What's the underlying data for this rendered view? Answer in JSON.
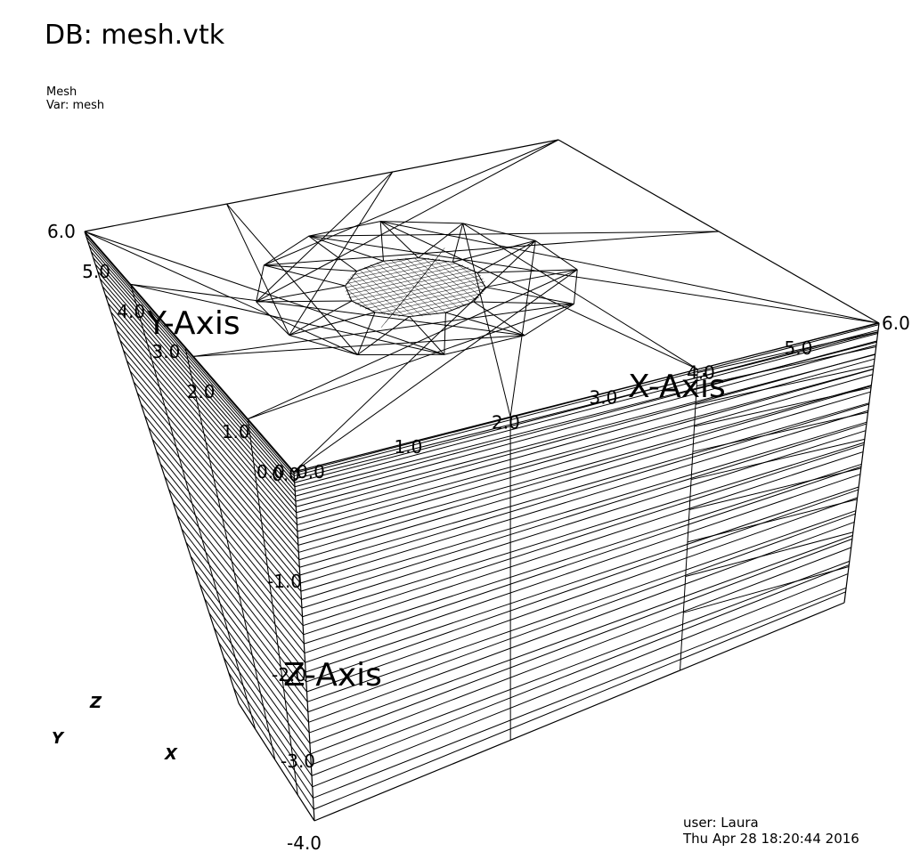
{
  "header": {
    "db_title": "DB: mesh.vtk",
    "plot_type": "Mesh",
    "plot_var": "Var: mesh"
  },
  "axes": {
    "x_title": "X-Axis",
    "y_title": "Y-Axis",
    "z_title": "Z-Axis",
    "x_ticks": [
      "0.0",
      "1.0",
      "2.0",
      "3.0",
      "4.0",
      "5.0",
      "6.0"
    ],
    "y_ticks": [
      "0.0",
      "1.0",
      "2.0",
      "3.0",
      "4.0",
      "5.0",
      "6.0"
    ],
    "z_ticks": [
      "0.0",
      "-1.0",
      "-2.0",
      "-3.0",
      "-4.0"
    ]
  },
  "triad": {
    "x": "X",
    "y": "Y",
    "z": "Z"
  },
  "footer": {
    "user": "user: Laura",
    "timestamp": "Thu Apr 28 18:20:44 2016"
  },
  "colors": {
    "line": "#000000",
    "background": "#ffffff"
  }
}
